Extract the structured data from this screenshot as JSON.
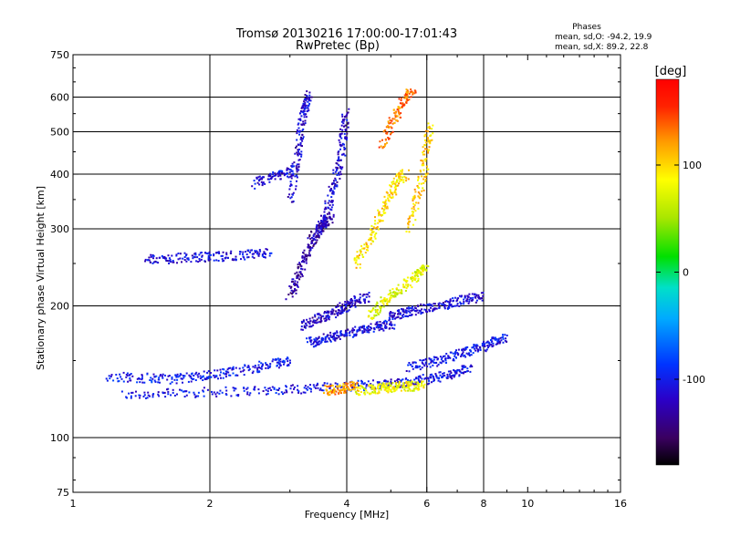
{
  "chart_data": {
    "type": "scatter",
    "title": "Tromsø 20130216 17:00:00-17:01:43",
    "subtitle": "RwPretec (Bp)",
    "xlabel": "Frequency [MHz]",
    "ylabel": "Stationary phase Virtual Height [km]",
    "x_scale": "log",
    "y_scale": "log",
    "xlim": [
      1,
      16
    ],
    "ylim": [
      75,
      750
    ],
    "x_ticks": [
      1,
      2,
      4,
      6,
      8,
      10,
      16
    ],
    "x_tick_labels": [
      "1",
      "2",
      "4",
      "6",
      "8",
      "10",
      "16"
    ],
    "x_gridlines": [
      2,
      4,
      6,
      8
    ],
    "y_ticks": [
      75,
      100,
      200,
      300,
      400,
      500,
      600,
      750
    ],
    "y_tick_labels": [
      "75",
      "100",
      "200",
      "300",
      "400",
      "500",
      "600",
      "750"
    ],
    "y_gridlines": [
      100,
      200,
      300,
      400,
      500,
      600
    ],
    "grid": true,
    "stats": {
      "heading": "Phases",
      "line1": "mean, sd,O: -94.2, 19.9",
      "line2": "mean, sd,X:  89.2, 22.8"
    },
    "colorbar": {
      "label": "[deg]",
      "min": -180,
      "max": 180,
      "ticks": [
        100,
        0,
        -100
      ],
      "tick_labels": [
        "100",
        "0",
        "-100"
      ]
    },
    "trace_groups": [
      {
        "x": [
          1.3,
          1.6,
          2.0,
          2.5,
          3.0,
          3.5,
          4.0,
          4.5,
          5.0,
          5.5,
          6.0,
          6.5,
          7.0,
          7.5
        ],
        "y": [
          125,
          126,
          127,
          128,
          129,
          130,
          131,
          132,
          133,
          134,
          136,
          138,
          140,
          145
        ],
        "phase": -105
      },
      {
        "x": [
          1.2,
          1.4,
          1.6,
          1.8,
          2.0,
          2.2,
          2.5,
          2.8,
          3.0
        ],
        "y": [
          138,
          137,
          136,
          137,
          139,
          141,
          144,
          148,
          150
        ],
        "phase": -100
      },
      {
        "x": [
          1.45,
          1.6,
          1.8,
          2.0,
          2.2,
          2.5,
          2.7
        ],
        "y": [
          255,
          256,
          258,
          259,
          260,
          262,
          264
        ],
        "phase": -110
      },
      {
        "x": [
          2.5,
          2.7,
          2.9,
          3.1
        ],
        "y": [
          380,
          392,
          400,
          410
        ],
        "phase": -110
      },
      {
        "x": [
          3.0,
          3.1,
          3.2,
          3.3,
          3.4,
          3.5,
          3.6,
          3.7
        ],
        "y": [
          210,
          230,
          250,
          270,
          290,
          300,
          310,
          320
        ],
        "phase": -130
      },
      {
        "x": [
          3.0,
          3.1,
          3.15,
          3.2,
          3.25,
          3.3
        ],
        "y": [
          350,
          420,
          480,
          540,
          580,
          610
        ],
        "phase": -115
      },
      {
        "x": [
          3.5,
          3.6,
          3.7,
          3.8,
          3.9,
          3.95,
          4.0
        ],
        "y": [
          300,
          320,
          360,
          400,
          450,
          500,
          560
        ],
        "phase": -115
      },
      {
        "x": [
          3.2,
          3.4,
          3.6,
          3.8,
          4.0,
          4.2,
          4.5
        ],
        "y": [
          180,
          185,
          190,
          195,
          200,
          205,
          210
        ],
        "phase": -120
      },
      {
        "x": [
          3.3,
          3.5,
          3.7,
          3.9,
          4.2,
          4.5,
          4.8,
          5.1
        ],
        "y": [
          165,
          167,
          170,
          172,
          175,
          178,
          180,
          182
        ],
        "phase": -110
      },
      {
        "x": [
          4.2,
          4.4,
          4.6,
          4.8,
          5.0,
          5.2,
          5.4
        ],
        "y": [
          250,
          270,
          300,
          330,
          360,
          390,
          400
        ],
        "phase": 95
      },
      {
        "x": [
          4.5,
          4.7,
          5.0,
          5.3,
          5.6,
          5.8,
          6.0
        ],
        "y": [
          190,
          200,
          210,
          220,
          230,
          240,
          250
        ],
        "phase": 75
      },
      {
        "x": [
          5.0,
          5.3,
          5.6,
          6.0,
          6.5,
          7.0,
          7.5,
          8.0
        ],
        "y": [
          190,
          192,
          195,
          198,
          200,
          205,
          208,
          210
        ],
        "phase": -110
      },
      {
        "x": [
          5.5,
          6.0,
          6.5,
          7.0,
          7.5,
          8.0,
          8.5,
          9.0
        ],
        "y": [
          145,
          148,
          150,
          155,
          158,
          162,
          166,
          170
        ],
        "phase": -105
      },
      {
        "x": [
          4.2,
          4.5,
          4.8,
          5.0,
          5.3,
          5.6,
          5.9
        ],
        "y": [
          128,
          129,
          130,
          130,
          131,
          131,
          132
        ],
        "phase": 80
      },
      {
        "x": [
          3.6,
          3.8,
          4.0,
          4.2
        ],
        "y": [
          128,
          129,
          130,
          131
        ],
        "phase": 120
      },
      {
        "x": [
          5.5,
          5.7,
          5.9,
          6.0,
          6.1
        ],
        "y": [
          300,
          350,
          400,
          460,
          520
        ],
        "phase": 100
      },
      {
        "x": [
          4.8,
          5.0,
          5.2,
          5.4,
          5.6
        ],
        "y": [
          460,
          520,
          560,
          600,
          620
        ],
        "phase": 130
      }
    ]
  }
}
